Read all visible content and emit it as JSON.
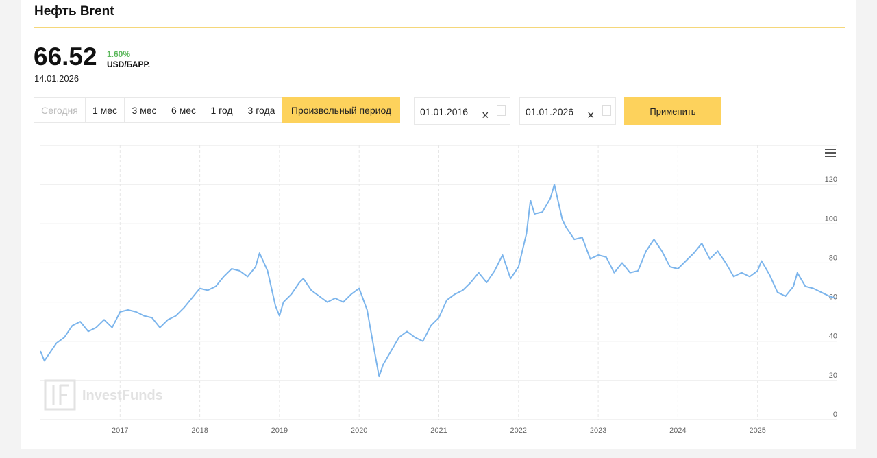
{
  "header": {
    "title": "Нефть Brent"
  },
  "quote": {
    "price": "66.52",
    "change": "1.60%",
    "unit": "USD/БАРР.",
    "date": "14.01.2026"
  },
  "periods": [
    "Сегодня",
    "1 мес",
    "3 мес",
    "6 мес",
    "1 год",
    "3 года",
    "Произвольный период"
  ],
  "date_from": "01.01.2016",
  "date_to": "01.01.2026",
  "apply": "Применить",
  "watermark": "InvestFunds",
  "chart_data": {
    "type": "line",
    "color": "#7cb5ec",
    "grid": true,
    "x": [
      2016.0,
      2016.05,
      2016.1,
      2016.2,
      2016.3,
      2016.4,
      2016.5,
      2016.6,
      2016.7,
      2016.8,
      2016.9,
      2017.0,
      2017.1,
      2017.2,
      2017.3,
      2017.4,
      2017.5,
      2017.6,
      2017.7,
      2017.8,
      2017.9,
      2018.0,
      2018.1,
      2018.2,
      2018.3,
      2018.4,
      2018.5,
      2018.6,
      2018.7,
      2018.75,
      2018.85,
      2018.95,
      2019.0,
      2019.05,
      2019.15,
      2019.25,
      2019.3,
      2019.4,
      2019.5,
      2019.6,
      2019.7,
      2019.8,
      2019.9,
      2020.0,
      2020.1,
      2020.2,
      2020.25,
      2020.3,
      2020.4,
      2020.5,
      2020.6,
      2020.7,
      2020.8,
      2020.9,
      2021.0,
      2021.1,
      2021.2,
      2021.3,
      2021.4,
      2021.5,
      2021.6,
      2021.7,
      2021.8,
      2021.9,
      2022.0,
      2022.1,
      2022.15,
      2022.2,
      2022.3,
      2022.4,
      2022.45,
      2022.55,
      2022.6,
      2022.7,
      2022.8,
      2022.9,
      2023.0,
      2023.1,
      2023.2,
      2023.3,
      2023.4,
      2023.5,
      2023.6,
      2023.7,
      2023.8,
      2023.9,
      2024.0,
      2024.1,
      2024.2,
      2024.3,
      2024.4,
      2024.5,
      2024.6,
      2024.7,
      2024.8,
      2024.9,
      2025.0,
      2025.05,
      2025.15,
      2025.25,
      2025.35,
      2025.45,
      2025.5,
      2025.6,
      2025.7,
      2025.8,
      2025.9,
      2025.98
    ],
    "values": [
      35,
      30,
      33,
      39,
      42,
      48,
      50,
      45,
      47,
      51,
      47,
      55,
      56,
      55,
      53,
      52,
      47,
      51,
      53,
      57,
      62,
      67,
      66,
      68,
      73,
      77,
      76,
      73,
      78,
      85,
      76,
      58,
      53,
      60,
      64,
      70,
      72,
      66,
      63,
      60,
      62,
      60,
      64,
      67,
      56,
      33,
      22,
      28,
      35,
      42,
      45,
      42,
      40,
      48,
      52,
      61,
      64,
      66,
      70,
      75,
      70,
      76,
      84,
      72,
      78,
      95,
      112,
      105,
      106,
      113,
      120,
      102,
      98,
      92,
      93,
      82,
      84,
      83,
      75,
      80,
      75,
      76,
      86,
      92,
      86,
      78,
      77,
      81,
      85,
      90,
      82,
      86,
      80,
      73,
      75,
      73,
      76,
      81,
      74,
      65,
      63,
      68,
      75,
      68,
      67,
      65,
      63,
      62
    ],
    "xlim": [
      2016,
      2026
    ],
    "xticks": [
      2017,
      2018,
      2019,
      2020,
      2021,
      2022,
      2023,
      2024,
      2025
    ],
    "ylim": [
      0,
      140
    ],
    "yticks": [
      0,
      20,
      40,
      60,
      80,
      100,
      120
    ]
  }
}
